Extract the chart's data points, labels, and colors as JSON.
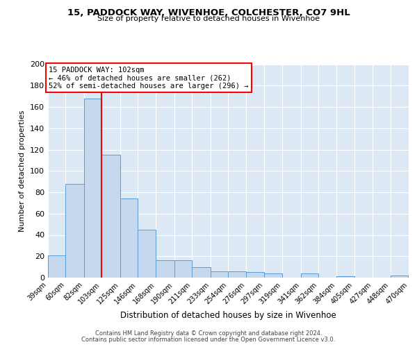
{
  "title": "15, PADDOCK WAY, WIVENHOE, COLCHESTER, CO7 9HL",
  "subtitle": "Size of property relative to detached houses in Wivenhoe",
  "xlabel": "Distribution of detached houses by size in Wivenhoe",
  "ylabel": "Number of detached properties",
  "bar_color": "#c5d8ed",
  "bar_edge_color": "#5b9bd5",
  "background_color": "#dce9f5",
  "grid_color": "#ffffff",
  "red_line_x": 103,
  "annotation_title": "15 PADDOCK WAY: 102sqm",
  "annotation_line1": "← 46% of detached houses are smaller (262)",
  "annotation_line2": "52% of semi-detached houses are larger (296) →",
  "footer1": "Contains HM Land Registry data © Crown copyright and database right 2024.",
  "footer2": "Contains public sector information licensed under the Open Government Licence v3.0.",
  "bin_edges": [
    39,
    60,
    82,
    103,
    125,
    146,
    168,
    190,
    211,
    233,
    254,
    276,
    297,
    319,
    341,
    362,
    384,
    405,
    427,
    448,
    470
  ],
  "bin_labels": [
    "39sqm",
    "60sqm",
    "82sqm",
    "103sqm",
    "125sqm",
    "146sqm",
    "168sqm",
    "190sqm",
    "211sqm",
    "233sqm",
    "254sqm",
    "276sqm",
    "297sqm",
    "319sqm",
    "341sqm",
    "362sqm",
    "384sqm",
    "405sqm",
    "427sqm",
    "448sqm",
    "470sqm"
  ],
  "bar_heights": [
    21,
    88,
    168,
    115,
    74,
    45,
    16,
    16,
    10,
    6,
    6,
    5,
    4,
    0,
    4,
    0,
    1,
    0,
    0,
    2
  ],
  "ylim": [
    0,
    200
  ],
  "yticks": [
    0,
    20,
    40,
    60,
    80,
    100,
    120,
    140,
    160,
    180,
    200
  ]
}
